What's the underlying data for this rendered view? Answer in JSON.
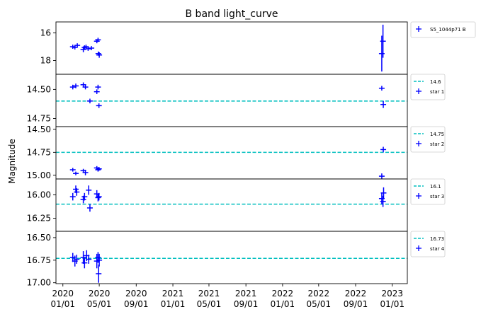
{
  "chart_data": {
    "type": "scatter",
    "title": "B band light_curve",
    "ylabel": "Magnitude",
    "x_ticks": [
      "2020\n01/01",
      "2020\n05/01",
      "2020\n09/01",
      "2021\n01/01",
      "2021\n05/01",
      "2021\n09/01",
      "2022\n01/01",
      "2022\n05/01",
      "2022\n09/01",
      "2023\n01/01"
    ],
    "x_tick_dates": [
      "2020-01-01",
      "2020-05-01",
      "2020-09-01",
      "2021-01-01",
      "2021-05-01",
      "2021-09-01",
      "2022-01-01",
      "2022-05-01",
      "2022-09-01",
      "2023-01-01"
    ],
    "xlim": [
      "2019-12-09",
      "2023-02-20"
    ],
    "series_color": "#0000ff",
    "ref_line_color": "#00bfbf",
    "panels": [
      {
        "legend_series": "S5_1044p71 B",
        "yticks": [
          16,
          18
        ],
        "ylim": [
          19.0,
          15.2
        ],
        "points": [
          {
            "x": "2020-02-03",
            "y": 17.0,
            "e": 0.15
          },
          {
            "x": "2020-02-10",
            "y": 17.05,
            "e": 0.15
          },
          {
            "x": "2020-02-18",
            "y": 16.9,
            "e": 0.15
          },
          {
            "x": "2020-03-09",
            "y": 17.2,
            "e": 0.2
          },
          {
            "x": "2020-03-13",
            "y": 17.05,
            "e": 0.15
          },
          {
            "x": "2020-03-18",
            "y": 17.0,
            "e": 0.15
          },
          {
            "x": "2020-03-25",
            "y": 17.15,
            "e": 0.15
          },
          {
            "x": "2020-04-05",
            "y": 17.1,
            "e": 0.15
          },
          {
            "x": "2020-04-23",
            "y": 16.6,
            "e": 0.15
          },
          {
            "x": "2020-04-27",
            "y": 16.5,
            "e": 0.15
          },
          {
            "x": "2020-04-28",
            "y": 17.5,
            "e": 0.15
          },
          {
            "x": "2020-05-01",
            "y": 17.6,
            "e": 0.2
          },
          {
            "x": "2022-11-27",
            "y": 17.5,
            "e": 1.3
          },
          {
            "x": "2022-12-01",
            "y": 16.6,
            "e": 1.2
          }
        ]
      },
      {
        "ref_value": 14.6,
        "ref_label": "14.6",
        "legend_series": "star 1",
        "yticks": [
          14.5,
          14.75
        ],
        "ylim": [
          14.82,
          14.37
        ],
        "points": [
          {
            "x": "2020-02-03",
            "y": 14.48,
            "e": 0.02
          },
          {
            "x": "2020-02-13",
            "y": 14.47,
            "e": 0.02
          },
          {
            "x": "2020-03-09",
            "y": 14.46,
            "e": 0.02
          },
          {
            "x": "2020-03-16",
            "y": 14.48,
            "e": 0.02
          },
          {
            "x": "2020-03-31",
            "y": 14.6,
            "e": 0.02
          },
          {
            "x": "2020-04-23",
            "y": 14.52,
            "e": 0.02
          },
          {
            "x": "2020-04-27",
            "y": 14.48,
            "e": 0.02
          },
          {
            "x": "2020-04-30",
            "y": 14.64,
            "e": 0.02
          },
          {
            "x": "2022-11-27",
            "y": 14.49,
            "e": 0.02
          },
          {
            "x": "2022-12-02",
            "y": 14.63,
            "e": 0.03
          }
        ]
      },
      {
        "ref_value": 14.75,
        "ref_label": "14.75",
        "legend_series": "star 2",
        "yticks": [
          14.5,
          14.75,
          15.0
        ],
        "ylim": [
          15.04,
          14.47
        ],
        "points": [
          {
            "x": "2020-02-03",
            "y": 14.94,
            "e": 0.02
          },
          {
            "x": "2020-02-13",
            "y": 14.98,
            "e": 0.02
          },
          {
            "x": "2020-03-09",
            "y": 14.95,
            "e": 0.02
          },
          {
            "x": "2020-03-16",
            "y": 14.97,
            "e": 0.03
          },
          {
            "x": "2020-04-23",
            "y": 14.92,
            "e": 0.02
          },
          {
            "x": "2020-04-27",
            "y": 14.94,
            "e": 0.02
          },
          {
            "x": "2020-04-30",
            "y": 14.93,
            "e": 0.02
          },
          {
            "x": "2022-11-27",
            "y": 15.01,
            "e": 0.03
          },
          {
            "x": "2022-12-02",
            "y": 14.72,
            "e": 0.03
          }
        ]
      },
      {
        "ref_value": 16.1,
        "ref_label": "16.1",
        "legend_series": "star 3",
        "yticks": [
          16.0,
          16.25
        ],
        "ylim": [
          16.39,
          15.83
        ],
        "points": [
          {
            "x": "2020-02-03",
            "y": 16.02,
            "e": 0.04
          },
          {
            "x": "2020-02-13",
            "y": 15.94,
            "e": 0.04
          },
          {
            "x": "2020-02-16",
            "y": 15.97,
            "e": 0.04
          },
          {
            "x": "2020-03-09",
            "y": 16.05,
            "e": 0.04
          },
          {
            "x": "2020-03-13",
            "y": 16.02,
            "e": 0.04
          },
          {
            "x": "2020-03-27",
            "y": 15.95,
            "e": 0.05
          },
          {
            "x": "2020-03-31",
            "y": 16.14,
            "e": 0.04
          },
          {
            "x": "2020-04-23",
            "y": 15.99,
            "e": 0.04
          },
          {
            "x": "2020-04-27",
            "y": 16.03,
            "e": 0.04
          },
          {
            "x": "2020-04-30",
            "y": 16.02,
            "e": 0.04
          },
          {
            "x": "2022-11-27",
            "y": 16.04,
            "e": 0.06
          },
          {
            "x": "2022-12-01",
            "y": 16.07,
            "e": 0.06
          },
          {
            "x": "2022-12-03",
            "y": 15.98,
            "e": 0.06
          }
        ]
      },
      {
        "ref_value": 16.73,
        "ref_label": "16.73",
        "legend_series": "star 4",
        "yticks": [
          16.5,
          16.75,
          17.0
        ],
        "ylim": [
          17.01,
          16.43
        ],
        "points": [
          {
            "x": "2020-02-03",
            "y": 16.72,
            "e": 0.05
          },
          {
            "x": "2020-02-10",
            "y": 16.76,
            "e": 0.06
          },
          {
            "x": "2020-02-16",
            "y": 16.74,
            "e": 0.05
          },
          {
            "x": "2020-03-09",
            "y": 16.72,
            "e": 0.07
          },
          {
            "x": "2020-03-13",
            "y": 16.78,
            "e": 0.06
          },
          {
            "x": "2020-03-20",
            "y": 16.7,
            "e": 0.06
          },
          {
            "x": "2020-03-27",
            "y": 16.74,
            "e": 0.05
          },
          {
            "x": "2020-04-23",
            "y": 16.76,
            "e": 0.08
          },
          {
            "x": "2020-04-27",
            "y": 16.72,
            "e": 0.06
          },
          {
            "x": "2020-04-29",
            "y": 16.9,
            "e": 0.1
          },
          {
            "x": "2020-05-01",
            "y": 16.75,
            "e": 0.07
          }
        ]
      }
    ]
  }
}
